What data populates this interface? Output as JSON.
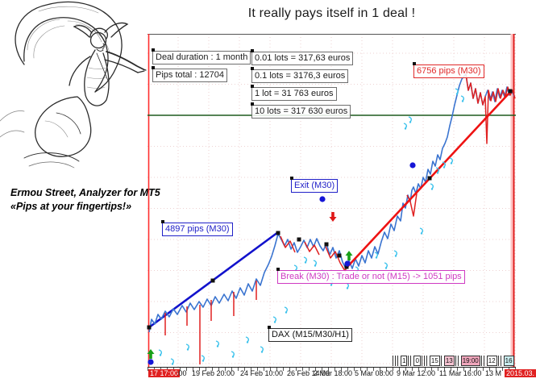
{
  "title": "It really pays itself in 1 deal !",
  "branding": {
    "line1": "Ermou Street, Analyzer for MT5",
    "line2": "«Pips at your fingertips!»"
  },
  "chart_labels": {
    "deal_duration": "Deal duration : 1 month",
    "pips_total": "Pips total : 12704",
    "lots": [
      "0.01 lots = 317,63 euros",
      "0.1 lots = 3176,3 euros",
      "1 lot = 31 763 euros",
      "10 lots = 317 630 euros"
    ],
    "pips_up_trend": "6756 pips (M30)",
    "exit": "Exit (M30)",
    "pips_first_trend": "4897 pips (M30)",
    "break_note": "Break (M30) : Trade or not (M15) -> 1051 pips",
    "symbol": "DAX (M15/M30/H1)"
  },
  "colors": {
    "price_blue": "#3a74d0",
    "price_red": "#e02020",
    "trend_blue": "#1212cc",
    "trend_red": "#ee1212",
    "grid": "#eed2d2",
    "green_level": "#1f5c1f",
    "cyan_mark": "#3cc2ec",
    "dot_blue": "#1616d6",
    "arrow_green": "#18a018",
    "arrow_red": "#e01818",
    "axis_highlight": "#e02020"
  },
  "chart_data": {
    "type": "line",
    "symbol": "DAX",
    "timeframes": "M15/M30/H1",
    "y_axis": "price scale not shown",
    "x_ticks": [
      {
        "text": "17 17:00",
        "x": 184,
        "highlight": true
      },
      {
        "text": ":00",
        "x": 219
      },
      {
        "text": "19 Feb 20:00",
        "x": 238
      },
      {
        "text": "24 Feb 10:00",
        "x": 298
      },
      {
        "text": "26 Feb 14:00",
        "x": 356
      },
      {
        "text": "2 Mar 18:00",
        "x": 389
      },
      {
        "text": "5 Mar 08:00",
        "x": 440
      },
      {
        "text": "9 Mar 12:00",
        "x": 492
      },
      {
        "text": "11 Mar 16:00",
        "x": 545
      },
      {
        "text": "13 M",
        "x": 602
      },
      {
        "text": "2015.03.",
        "x": 626,
        "highlight": true
      }
    ],
    "mini_strip": [
      {
        "bars": 3
      },
      {
        "text": "1"
      },
      {
        "bars": 2
      },
      {
        "text": "0"
      },
      {
        "bars": 3
      },
      {
        "text": "15"
      },
      {
        "bars": 1
      },
      {
        "text": "13",
        "bg": "#f6c3d2"
      },
      {
        "bars": 2
      },
      {
        "text": "19:00",
        "bg": "#f0a6bc"
      },
      {
        "bars": 2
      },
      {
        "text": "12"
      },
      {
        "bars": 2
      },
      {
        "text": "16",
        "bg": "#c8ecee"
      }
    ],
    "geometry": {
      "bounds": {
        "x1": 183,
        "y1": 42,
        "x2": 640,
        "y2": 455
      },
      "grid": {
        "x0": 221,
        "dx": 38,
        "nx": 12,
        "y0": 66,
        "dy": 38.5,
        "ny": 11
      },
      "green_hline_y": 143,
      "left_red_vline_x": 184.5,
      "right_band": {
        "x": 633.5,
        "w": 3
      },
      "right_red_vline_x": 637.5,
      "trendlines": [
        {
          "x1": 185,
          "y1": 406,
          "x2": 345,
          "y2": 288,
          "color": "trend_blue"
        },
        {
          "x1": 430,
          "y1": 332,
          "x2": 634,
          "y2": 113,
          "color": "trend_red"
        }
      ],
      "handles": [
        [
          185,
          406
        ],
        [
          264,
          348
        ],
        [
          345,
          289
        ],
        [
          371,
          297
        ],
        [
          405,
          303
        ],
        [
          421,
          317
        ],
        [
          430,
          331
        ],
        [
          533,
          221
        ],
        [
          633,
          113
        ]
      ],
      "price": [
        [
          185,
          412
        ],
        [
          188,
          396
        ],
        [
          192,
          402
        ],
        [
          196,
          390
        ],
        [
          200,
          396
        ],
        [
          205,
          386
        ],
        [
          210,
          393
        ],
        [
          215,
          383
        ],
        [
          220,
          390
        ],
        [
          226,
          379
        ],
        [
          231,
          387
        ],
        [
          236,
          376
        ],
        [
          241,
          384
        ],
        [
          247,
          374
        ],
        [
          252,
          381
        ],
        [
          257,
          371
        ],
        [
          262,
          379
        ],
        [
          267,
          368
        ],
        [
          272,
          376
        ],
        [
          278,
          365
        ],
        [
          283,
          373
        ],
        [
          288,
          361
        ],
        [
          293,
          370
        ],
        [
          298,
          357
        ],
        [
          303,
          366
        ],
        [
          308,
          352
        ],
        [
          313,
          361
        ],
        [
          318,
          346
        ],
        [
          323,
          354
        ],
        [
          328,
          338
        ],
        [
          333,
          328
        ],
        [
          337,
          318
        ],
        [
          341,
          305
        ],
        [
          345,
          290
        ],
        [
          349,
          297
        ],
        [
          353,
          305
        ],
        [
          357,
          297
        ],
        [
          361,
          309
        ],
        [
          365,
          301
        ],
        [
          369,
          313
        ],
        [
          373,
          306
        ],
        [
          377,
          298
        ],
        [
          381,
          307
        ],
        [
          385,
          297
        ],
        [
          389,
          306
        ],
        [
          393,
          296
        ],
        [
          397,
          305
        ],
        [
          401,
          311
        ],
        [
          405,
          302
        ],
        [
          409,
          316
        ],
        [
          413,
          307
        ],
        [
          417,
          320
        ],
        [
          421,
          311
        ],
        [
          425,
          325
        ],
        [
          429,
          333
        ],
        [
          433,
          323
        ],
        [
          437,
          333
        ],
        [
          441,
          321
        ],
        [
          445,
          330
        ],
        [
          449,
          317
        ],
        [
          453,
          326
        ],
        [
          457,
          311
        ],
        [
          461,
          320
        ],
        [
          465,
          306
        ],
        [
          469,
          315
        ],
        [
          473,
          300
        ],
        [
          477,
          288
        ],
        [
          481,
          296
        ],
        [
          485,
          278
        ],
        [
          489,
          286
        ],
        [
          493,
          268
        ],
        [
          497,
          274
        ],
        [
          500,
          252
        ],
        [
          503,
          258
        ],
        [
          506,
          242
        ],
        [
          509,
          250
        ],
        [
          511,
          236
        ],
        [
          513,
          232
        ],
        [
          516,
          240
        ],
        [
          519,
          228
        ],
        [
          522,
          234
        ],
        [
          525,
          220
        ],
        [
          528,
          226
        ],
        [
          531,
          210
        ],
        [
          534,
          216
        ],
        [
          537,
          200
        ],
        [
          540,
          206
        ],
        [
          543,
          192
        ],
        [
          546,
          198
        ],
        [
          549,
          184
        ],
        [
          552,
          178
        ],
        [
          555,
          170
        ],
        [
          558,
          156
        ],
        [
          561,
          144
        ],
        [
          564,
          130
        ],
        [
          567,
          118
        ],
        [
          570,
          106
        ],
        [
          573,
          98
        ],
        [
          576,
          94
        ],
        [
          578,
          92
        ],
        [
          581,
          112
        ],
        [
          584,
          103
        ],
        [
          587,
          122
        ],
        [
          590,
          110
        ],
        [
          593,
          128
        ],
        [
          596,
          115
        ],
        [
          599,
          130
        ],
        [
          602,
          120
        ],
        [
          605,
          112
        ],
        [
          608,
          124
        ],
        [
          611,
          114
        ],
        [
          614,
          126
        ],
        [
          617,
          110
        ],
        [
          620,
          121
        ],
        [
          623,
          112
        ],
        [
          626,
          120
        ],
        [
          629,
          108
        ],
        [
          632,
          118
        ],
        [
          635,
          112
        ],
        [
          638,
          120
        ]
      ],
      "red_segments": [
        [
          [
            348,
            293
          ],
          [
            354,
            307
          ],
          [
            360,
            299
          ],
          [
            366,
            313
          ]
        ],
        [
          [
            378,
            300
          ],
          [
            384,
            312
          ],
          [
            390,
            304
          ],
          [
            396,
            316
          ]
        ],
        [
          [
            404,
            306
          ],
          [
            410,
            320
          ],
          [
            416,
            312
          ],
          [
            422,
            326
          ],
          [
            428,
            336
          ],
          [
            433,
            326
          ]
        ],
        [
          [
            205,
            388
          ],
          [
            205,
            416
          ]
        ],
        [
          [
            232,
            380
          ],
          [
            232,
            404
          ]
        ],
        [
          [
            248,
            378
          ],
          [
            248,
            452
          ]
        ],
        [
          [
            262,
            372
          ],
          [
            262,
            398
          ]
        ],
        [
          [
            290,
            362
          ],
          [
            290,
            392
          ]
        ],
        [
          [
            318,
            348
          ],
          [
            318,
            372
          ]
        ],
        [
          [
            505,
            242
          ],
          [
            509,
            250
          ],
          [
            513,
            268
          ],
          [
            517,
            240
          ]
        ],
        [
          [
            578,
            92
          ],
          [
            581,
            112
          ],
          [
            584,
            103
          ],
          [
            587,
            122
          ],
          [
            590,
            110
          ],
          [
            593,
            128
          ],
          [
            596,
            115
          ],
          [
            599,
            130
          ],
          [
            602,
            120
          ],
          [
            604,
            178
          ],
          [
            606,
            112
          ],
          [
            609,
            125
          ],
          [
            612,
            114
          ],
          [
            615,
            126
          ],
          [
            618,
            110
          ],
          [
            621,
            122
          ],
          [
            624,
            112
          ],
          [
            627,
            120
          ],
          [
            630,
            108
          ],
          [
            633,
            118
          ],
          [
            636,
            112
          ],
          [
            639,
            122
          ]
        ]
      ],
      "cyan_marks": [
        [
          199,
          441
        ],
        [
          214,
          452
        ],
        [
          233,
          434
        ],
        [
          252,
          448
        ],
        [
          270,
          430
        ],
        [
          289,
          443
        ],
        [
          307,
          425
        ],
        [
          325,
          437
        ],
        [
          341,
          400
        ],
        [
          355,
          388
        ],
        [
          367,
          336
        ],
        [
          379,
          326
        ],
        [
          391,
          330
        ],
        [
          401,
          342
        ],
        [
          411,
          354
        ],
        [
          421,
          346
        ],
        [
          431,
          358
        ],
        [
          443,
          338
        ],
        [
          455,
          348
        ],
        [
          467,
          320
        ],
        [
          479,
          333
        ],
        [
          491,
          318
        ],
        [
          503,
          160
        ],
        [
          509,
          152
        ],
        [
          523,
          290
        ],
        [
          536,
          235
        ],
        [
          543,
          215
        ],
        [
          551,
          208
        ],
        [
          560,
          203
        ],
        [
          567,
          117
        ],
        [
          574,
          126
        ]
      ],
      "blue_dots": [
        [
          187,
          449
        ],
        [
          400,
          247
        ],
        [
          431,
          327
        ],
        [
          512,
          205
        ]
      ],
      "green_arrows": [
        [
          187,
          433
        ],
        [
          433,
          311
        ]
      ],
      "red_arrows": [
        [
          413,
          262
        ]
      ]
    }
  }
}
